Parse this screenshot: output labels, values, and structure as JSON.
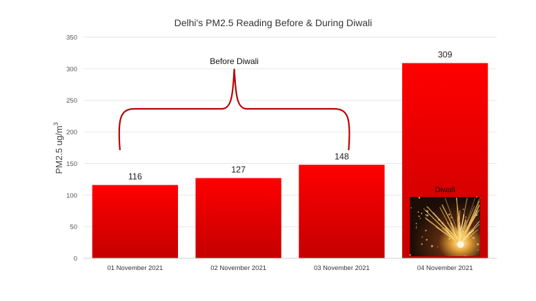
{
  "chart_data": {
    "type": "bar",
    "title": "Delhi's PM2.5 Reading Before & During Diwali",
    "ylabel_main": "PM2.5 ug/m",
    "ylabel_sup": "3",
    "xlabel": "",
    "categories": [
      "01 November 2021",
      "02 November 2021",
      "03 November 2021",
      "04 November 2021"
    ],
    "values": [
      116,
      127,
      148,
      309
    ],
    "ylim": [
      0,
      350
    ],
    "yticks": [
      0,
      50,
      100,
      150,
      200,
      250,
      300,
      350
    ],
    "grid": true,
    "legend": "none",
    "annotations": {
      "bracket_label": "Before Diwali",
      "highlight_label": "Diwali"
    },
    "colors": {
      "bar_top": "#ff0000",
      "bar_bottom": "#c40000",
      "bracket": "#b80000",
      "grid": "#e6e6e6"
    }
  }
}
